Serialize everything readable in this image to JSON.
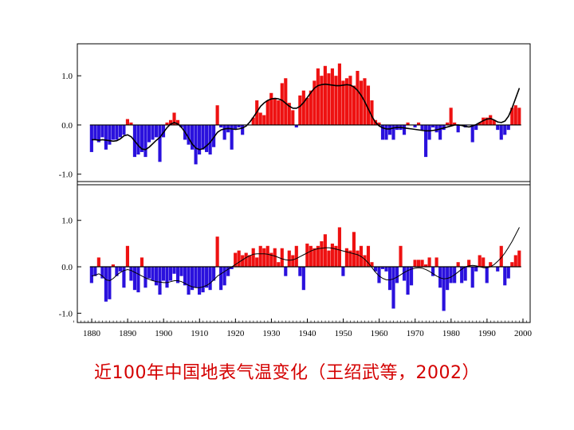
{
  "caption": "近100年中国地表气温变化（王绍武等，2002）",
  "chart_data": [
    {
      "type": "bar",
      "x_start": 1880,
      "x_end": 1999,
      "xlim": [
        1876,
        2002
      ],
      "ylim": [
        -1.15,
        1.65
      ],
      "yticks": [
        "1.0",
        "0.0",
        "-1.0"
      ],
      "ytick_values": [
        1.0,
        0.0,
        -1.0
      ],
      "colors": {
        "positive": "#ee1111",
        "negative": "#2a11dd",
        "curve": "#000000"
      },
      "values": [
        -0.55,
        -0.3,
        -0.35,
        -0.25,
        -0.5,
        -0.4,
        -0.3,
        -0.3,
        -0.25,
        -0.2,
        0.12,
        0.05,
        -0.65,
        -0.6,
        -0.55,
        -0.65,
        -0.35,
        -0.3,
        -0.25,
        -0.75,
        -0.25,
        0.05,
        0.1,
        0.25,
        0.1,
        -0.05,
        -0.3,
        -0.4,
        -0.5,
        -0.8,
        -0.6,
        -0.5,
        -0.55,
        -0.6,
        -0.45,
        0.4,
        -0.05,
        -0.3,
        -0.15,
        -0.5,
        -0.1,
        -0.05,
        -0.2,
        0.0,
        0.0,
        0.15,
        0.5,
        0.25,
        0.2,
        0.5,
        0.65,
        0.55,
        0.5,
        0.85,
        0.95,
        0.45,
        0.3,
        -0.05,
        0.6,
        0.7,
        0.55,
        0.7,
        0.9,
        1.15,
        1.0,
        1.2,
        1.05,
        1.15,
        1.0,
        1.25,
        0.9,
        0.95,
        1.0,
        0.8,
        1.1,
        0.9,
        0.95,
        0.8,
        0.5,
        0.1,
        0.05,
        -0.3,
        -0.3,
        -0.2,
        -0.3,
        -0.1,
        -0.1,
        -0.2,
        0.05,
        0.0,
        -0.05,
        0.05,
        -0.1,
        -0.65,
        -0.3,
        -0.05,
        -0.15,
        -0.3,
        -0.1,
        0.05,
        0.35,
        0.05,
        -0.15,
        0.0,
        -0.05,
        0.0,
        -0.35,
        -0.1,
        0.05,
        0.15,
        0.15,
        0.2,
        0.1,
        -0.1,
        -0.3,
        -0.2,
        -0.1,
        0.35,
        0.4,
        0.35
      ],
      "smooth": [
        -0.3,
        -0.3,
        -0.31,
        -0.3,
        -0.31,
        -0.32,
        -0.33,
        -0.32,
        -0.28,
        -0.22,
        -0.2,
        -0.24,
        -0.33,
        -0.42,
        -0.49,
        -0.5,
        -0.45,
        -0.38,
        -0.31,
        -0.25,
        -0.15,
        -0.05,
        0.02,
        0.05,
        0.02,
        -0.05,
        -0.15,
        -0.27,
        -0.39,
        -0.47,
        -0.5,
        -0.48,
        -0.42,
        -0.35,
        -0.25,
        -0.15,
        -0.1,
        -0.08,
        -0.07,
        -0.08,
        -0.09,
        -0.08,
        -0.06,
        -0.02,
        0.06,
        0.16,
        0.27,
        0.38,
        0.45,
        0.5,
        0.53,
        0.54,
        0.53,
        0.5,
        0.44,
        0.38,
        0.34,
        0.34,
        0.38,
        0.46,
        0.56,
        0.66,
        0.75,
        0.8,
        0.82,
        0.83,
        0.82,
        0.81,
        0.8,
        0.8,
        0.81,
        0.82,
        0.81,
        0.77,
        0.7,
        0.6,
        0.47,
        0.32,
        0.17,
        0.05,
        -0.02,
        -0.06,
        -0.08,
        -0.08,
        -0.06,
        -0.05,
        -0.05,
        -0.06,
        -0.07,
        -0.08,
        -0.09,
        -0.1,
        -0.11,
        -0.12,
        -0.12,
        -0.11,
        -0.1,
        -0.08,
        -0.06,
        -0.04,
        -0.02,
        0.0,
        0.0,
        -0.01,
        -0.03,
        -0.04,
        -0.02,
        0.01,
        0.05,
        0.09,
        0.12,
        0.13,
        0.1,
        0.06,
        0.05,
        0.08,
        0.18,
        0.35,
        0.55,
        0.75
      ]
    },
    {
      "type": "bar",
      "x_start": 1880,
      "x_end": 1999,
      "xlim": [
        1876,
        2002
      ],
      "ylim": [
        -1.2,
        1.75
      ],
      "yticks": [
        "1.0",
        "0.0",
        "-1.0"
      ],
      "ytick_values": [
        1.0,
        0.0,
        -1.0
      ],
      "xticks": [
        "1880",
        "1890",
        "1900",
        "1910",
        "1920",
        "1930",
        "1940",
        "1950",
        "1960",
        "1970",
        "1980",
        "1990",
        "2000"
      ],
      "xtick_values": [
        1880,
        1890,
        1900,
        1910,
        1920,
        1930,
        1940,
        1950,
        1960,
        1970,
        1980,
        1990,
        2000
      ],
      "colors": {
        "positive": "#ee1111",
        "negative": "#2a11dd",
        "curve": "#000000"
      },
      "values": [
        -0.35,
        -0.2,
        0.2,
        -0.25,
        -0.75,
        -0.7,
        0.05,
        -0.2,
        -0.1,
        -0.45,
        0.45,
        -0.3,
        -0.5,
        -0.55,
        0.2,
        -0.45,
        -0.25,
        -0.3,
        -0.4,
        -0.6,
        -0.3,
        -0.45,
        -0.3,
        -0.15,
        -0.35,
        -0.2,
        -0.4,
        -0.6,
        -0.5,
        -0.45,
        -0.6,
        -0.55,
        -0.45,
        -0.5,
        -0.3,
        0.65,
        -0.5,
        -0.4,
        -0.2,
        -0.05,
        0.3,
        0.35,
        0.25,
        0.3,
        0.25,
        0.4,
        0.2,
        0.45,
        0.4,
        0.45,
        0.3,
        0.4,
        0.1,
        0.4,
        -0.2,
        0.35,
        0.25,
        0.45,
        -0.2,
        -0.5,
        0.5,
        0.45,
        0.4,
        0.45,
        0.55,
        0.7,
        0.35,
        0.5,
        0.45,
        0.85,
        -0.2,
        0.4,
        0.35,
        0.75,
        0.35,
        0.45,
        0.25,
        0.45,
        0.1,
        -0.1,
        -0.35,
        -0.05,
        -0.1,
        -0.5,
        -0.9,
        -0.35,
        0.45,
        -0.3,
        -0.6,
        -0.4,
        0.15,
        0.15,
        0.15,
        0.05,
        0.2,
        -0.2,
        0.2,
        -0.45,
        -0.95,
        -0.5,
        -0.35,
        -0.35,
        0.1,
        -0.35,
        -0.3,
        0.15,
        -0.45,
        -0.1,
        0.25,
        0.2,
        -0.35,
        0.1,
        0.0,
        -0.1,
        0.45,
        -0.4,
        -0.25,
        0.1,
        0.25,
        0.35
      ],
      "smooth": [
        -0.2,
        -0.18,
        -0.15,
        -0.2,
        -0.28,
        -0.3,
        -0.25,
        -0.18,
        -0.12,
        -0.08,
        -0.06,
        -0.08,
        -0.12,
        -0.16,
        -0.2,
        -0.24,
        -0.27,
        -0.3,
        -0.32,
        -0.33,
        -0.34,
        -0.34,
        -0.32,
        -0.3,
        -0.3,
        -0.32,
        -0.36,
        -0.4,
        -0.43,
        -0.45,
        -0.45,
        -0.43,
        -0.4,
        -0.35,
        -0.28,
        -0.2,
        -0.15,
        -0.1,
        -0.05,
        0.0,
        0.05,
        0.1,
        0.15,
        0.2,
        0.24,
        0.27,
        0.28,
        0.28,
        0.28,
        0.27,
        0.25,
        0.23,
        0.2,
        0.17,
        0.15,
        0.14,
        0.15,
        0.18,
        0.22,
        0.26,
        0.3,
        0.34,
        0.37,
        0.39,
        0.4,
        0.41,
        0.41,
        0.4,
        0.38,
        0.36,
        0.34,
        0.32,
        0.3,
        0.28,
        0.26,
        0.22,
        0.16,
        0.08,
        -0.02,
        -0.12,
        -0.2,
        -0.25,
        -0.28,
        -0.28,
        -0.26,
        -0.22,
        -0.17,
        -0.12,
        -0.08,
        -0.05,
        -0.03,
        -0.02,
        -0.03,
        -0.06,
        -0.1,
        -0.15,
        -0.2,
        -0.24,
        -0.26,
        -0.25,
        -0.22,
        -0.17,
        -0.11,
        -0.05,
        0.0,
        0.02,
        0.03,
        0.02,
        0.0,
        -0.02,
        -0.02,
        0.0,
        0.05,
        0.12,
        0.2,
        0.3,
        0.42,
        0.55,
        0.7,
        0.85
      ]
    }
  ]
}
